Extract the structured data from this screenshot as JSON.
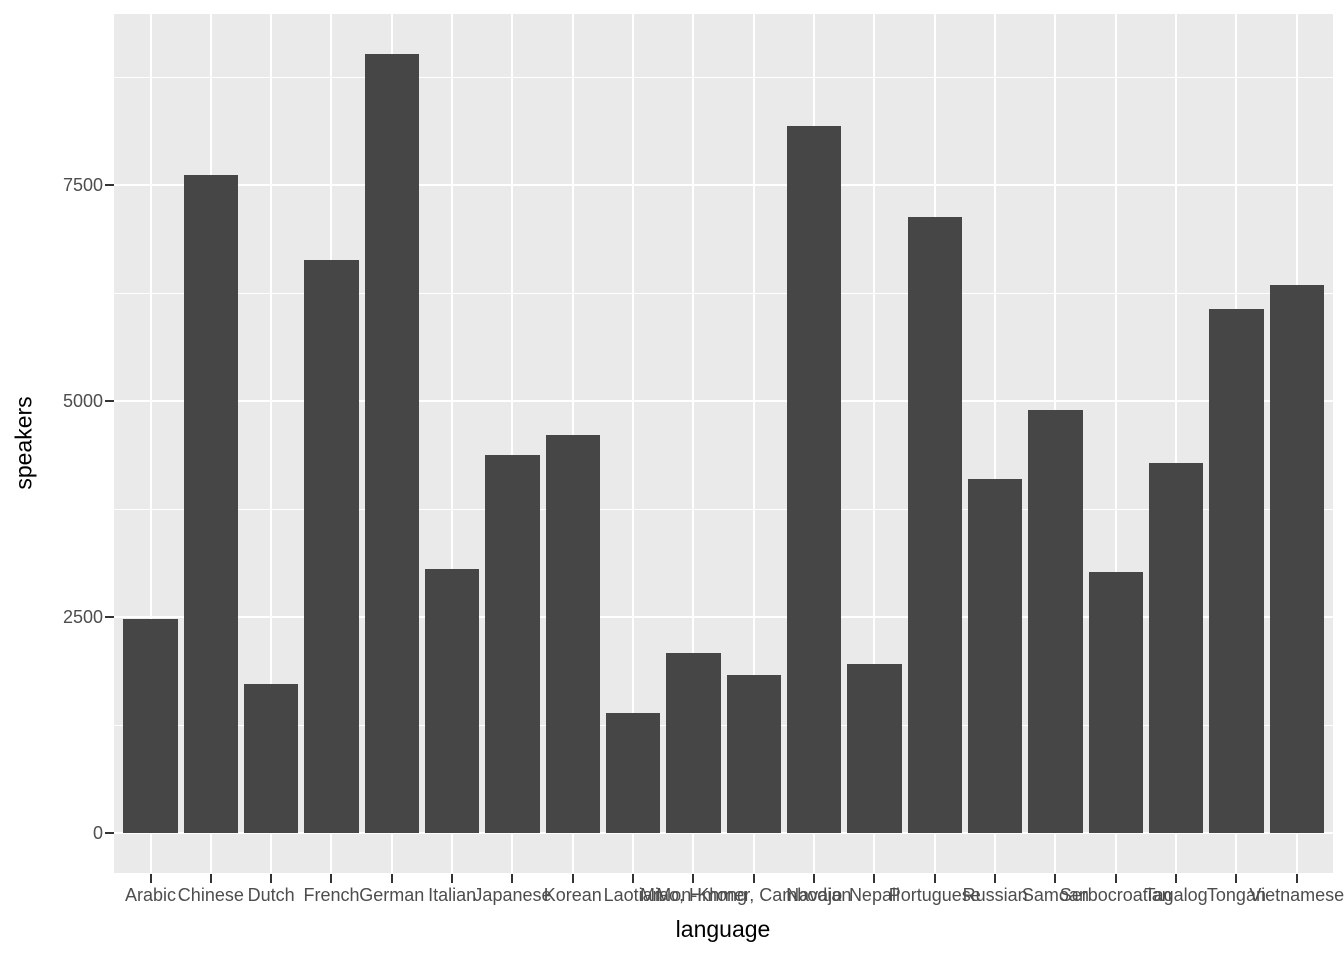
{
  "chart_data": {
    "type": "bar",
    "title": "",
    "xlabel": "language",
    "ylabel": "speakers",
    "categories": [
      "Arabic",
      "Chinese",
      "Dutch",
      "French",
      "German",
      "Italian",
      "Japanese",
      "Korean",
      "Laotian",
      "Miao, Hmong",
      "Mon-Khmer, Cambodian",
      "Navajo",
      "Nepali",
      "Portuguese",
      "Russian",
      "Samoan",
      "Serbocroatian",
      "Tagalog",
      "Tongan",
      "Vietnamese"
    ],
    "values": [
      2480,
      7620,
      1730,
      6630,
      9020,
      3050,
      4370,
      4610,
      1390,
      2080,
      1830,
      8180,
      1960,
      7130,
      4100,
      4900,
      3020,
      4280,
      6060,
      6340
    ],
    "y_ticks": [
      0,
      2500,
      5000,
      7500
    ],
    "y_tick_labels": [
      "0",
      "2500",
      "5000",
      "7500"
    ],
    "y_minor_ticks": [
      1250,
      3750,
      6250,
      8750
    ],
    "ylim": [
      0,
      9470
    ],
    "grid": "major-and-minor, white on grey panel",
    "legend_position": "none",
    "style": {
      "bar_color": "#464646",
      "panel_background": "#eaeaea",
      "grid_color": "#ffffff",
      "tick_label_color": "#4d4d4d",
      "tick_mark_color": "#333333",
      "axis_title_color": "#000000"
    },
    "x_labels_overlap": true
  }
}
